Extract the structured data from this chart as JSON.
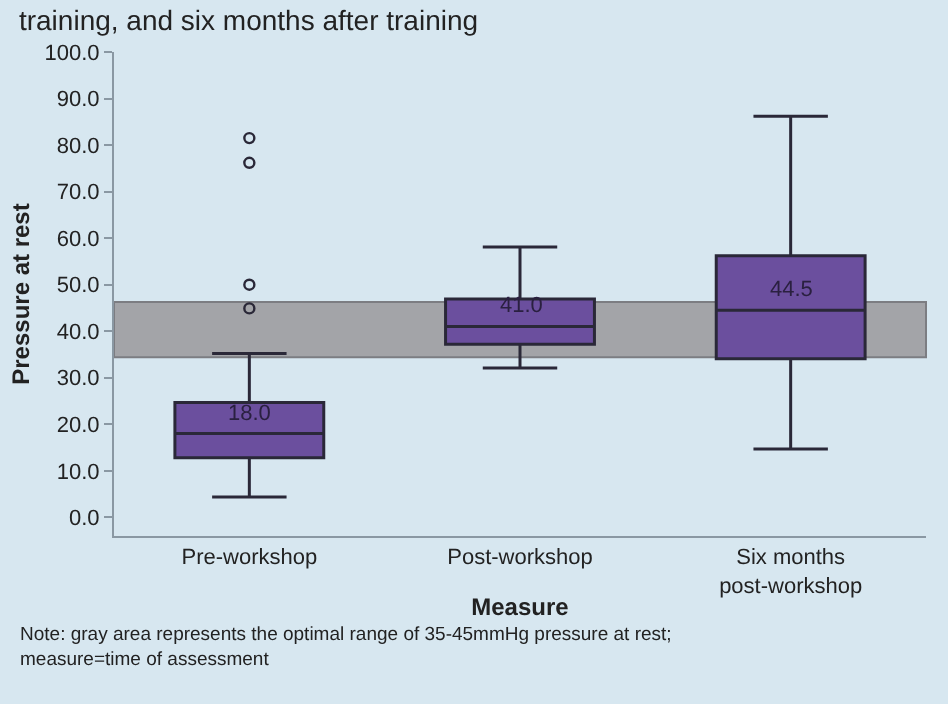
{
  "chart_data": {
    "type": "box",
    "title": "training, and six months after training",
    "xlabel": "Measure",
    "ylabel": "Pressure at rest",
    "categories": [
      "Pre-workshop",
      "Post-workshop",
      "Six months post-workshop"
    ],
    "boxes": [
      {
        "low": 4.4,
        "q1": 12.8,
        "median": 18,
        "q3": 24.7,
        "high": 35.2,
        "outliers": [
          44.9,
          50,
          76.2,
          81.5
        ]
      },
      {
        "low": 32.1,
        "q1": 37.2,
        "median": 41,
        "q3": 46.9,
        "high": 58.1
      },
      {
        "low": 14.7,
        "q1": 34.1,
        "median": 44.5,
        "q3": 56.2,
        "high": 86.2
      }
    ],
    "color": "#6b4f9e",
    "ylim": [
      -4,
      100
    ],
    "yticks": [
      {
        "value": 0,
        "label": "0.0"
      },
      {
        "value": 10,
        "label": "10.0"
      },
      {
        "value": 20,
        "label": "20.0"
      },
      {
        "value": 30,
        "label": "30.0"
      },
      {
        "value": 40,
        "label": "40.0"
      },
      {
        "value": 50,
        "label": "50.0"
      },
      {
        "value": 60,
        "label": "60.0"
      },
      {
        "value": 70,
        "label": "70.0"
      },
      {
        "value": 80,
        "label": "80.0"
      },
      {
        "value": 90,
        "label": "90.0"
      },
      {
        "value": 100,
        "label": "100.0"
      }
    ],
    "bands": [
      {
        "axis": "y",
        "from": 34.4,
        "to": 46.3,
        "color": "#a3a4a8"
      }
    ],
    "annotations": [
      {
        "text": "18.0",
        "x": "Pre-workshop",
        "y": 18
      },
      {
        "text": "41.0",
        "x": "Post-workshop",
        "y": 41
      },
      {
        "text": "44.5",
        "x": "Six months post-workshop",
        "y": 44.5
      },
      "Note: gray area represents the optimal range of 35-45mmHg pressure at rest; measure=time of assessment"
    ],
    "grid": false
  }
}
